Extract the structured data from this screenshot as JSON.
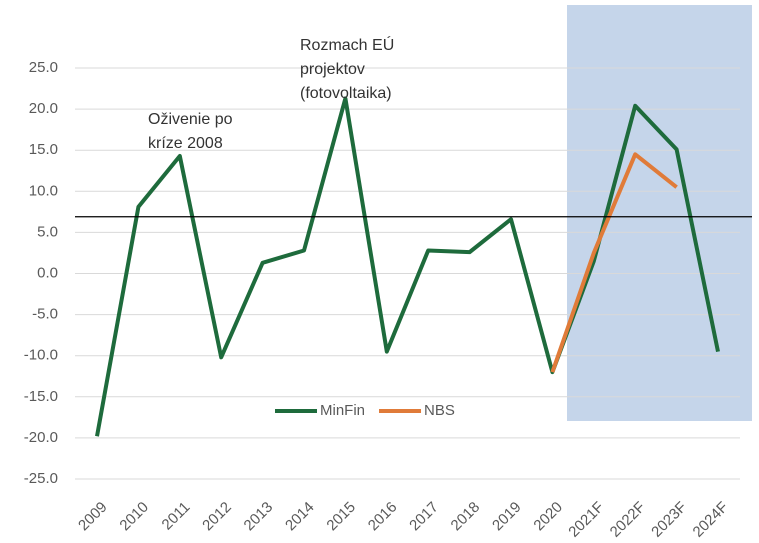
{
  "chart_data": {
    "type": "line",
    "categories": [
      "2009",
      "2010",
      "2011",
      "2012",
      "2013",
      "2014",
      "2015",
      "2016",
      "2017",
      "2018",
      "2019",
      "2020",
      "2021F",
      "2022F",
      "2023F",
      "2024F"
    ],
    "series": [
      {
        "name": "MinFin",
        "color": "#1e6b3c",
        "values": [
          -19.8,
          8.1,
          14.3,
          -10.2,
          1.3,
          2.8,
          21.3,
          -9.5,
          2.8,
          2.6,
          6.6,
          -12.0,
          1.5,
          20.4,
          15.1,
          -9.5
        ]
      },
      {
        "name": "NBS",
        "color": "#e07b39",
        "values": [
          null,
          null,
          null,
          null,
          null,
          null,
          null,
          null,
          null,
          null,
          null,
          -12.0,
          2.5,
          14.5,
          10.5,
          null
        ]
      }
    ],
    "ylim": [
      -25,
      25
    ],
    "yticks": [
      {
        "value": -25,
        "label": "-25.0"
      },
      {
        "value": -20,
        "label": "-20.0"
      },
      {
        "value": -15,
        "label": "-15.0"
      },
      {
        "value": -10,
        "label": "-10.0"
      },
      {
        "value": -5,
        "label": "-5.0"
      },
      {
        "value": 0,
        "label": "0.0"
      },
      {
        "value": 5,
        "label": "5.0"
      },
      {
        "value": 10,
        "label": "10.0"
      },
      {
        "value": 15,
        "label": "15.0"
      },
      {
        "value": 20,
        "label": "20.0"
      },
      {
        "value": 25,
        "label": "25.0"
      }
    ],
    "grid": true,
    "reference_line": 6.9,
    "annotations": [
      {
        "lines": [
          "Oživenie  po",
          "kríze 2008"
        ]
      },
      {
        "lines": [
          "Rozmach EÚ",
          "projektov",
          "(fotovoltaika)"
        ]
      }
    ]
  }
}
